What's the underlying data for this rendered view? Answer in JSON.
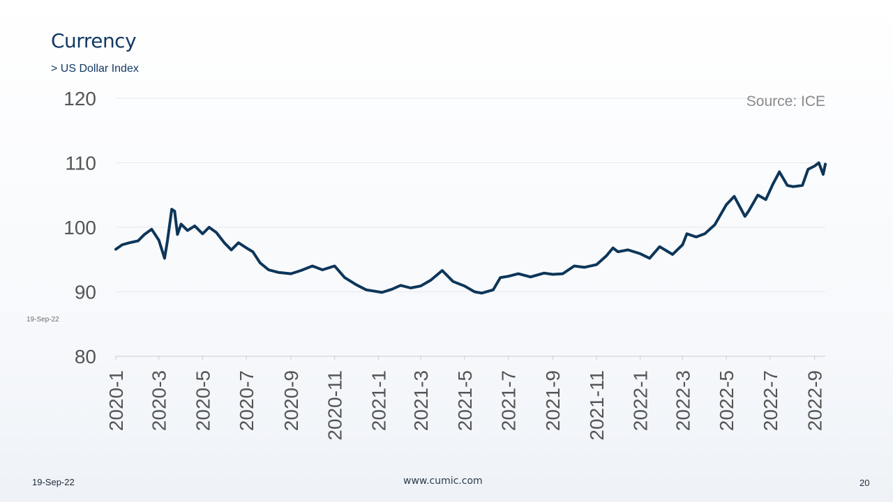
{
  "slide": {
    "title": "Currency",
    "subtitle": "> US Dollar Index",
    "side_date": "19-Sep-22",
    "footer_date": "19-Sep-22",
    "footer_url": "www.cumic.com",
    "page_number": "20"
  },
  "chart_data": {
    "type": "line",
    "title": "",
    "source_note": "Source:  ICE",
    "xlabel": "",
    "ylabel": "",
    "ylim": [
      80,
      120
    ],
    "yticks": [
      80,
      90,
      100,
      110,
      120
    ],
    "xlim": [
      "2020-01-01",
      "2022-09-16"
    ],
    "xticks": [
      "2020-1",
      "2020-3",
      "2020-5",
      "2020-7",
      "2020-9",
      "2020-11",
      "2021-1",
      "2021-3",
      "2021-5",
      "2021-7",
      "2021-9",
      "2021-11",
      "2022-1",
      "2022-3",
      "2022-5",
      "2022-7",
      "2022-9"
    ],
    "grid": true,
    "legend": "none",
    "line_color": "#0d3659",
    "series": [
      {
        "x": [
          "2020-01-01",
          "2020-01-10",
          "2020-01-20",
          "2020-02-01",
          "2020-02-10",
          "2020-02-20",
          "2020-03-01",
          "2020-03-09",
          "2020-03-13",
          "2020-03-19",
          "2020-03-23",
          "2020-03-27",
          "2020-04-01",
          "2020-04-10",
          "2020-04-20",
          "2020-05-01",
          "2020-05-10",
          "2020-05-20",
          "2020-06-01",
          "2020-06-10",
          "2020-06-20",
          "2020-07-01",
          "2020-07-10",
          "2020-07-20",
          "2020-08-01",
          "2020-08-15",
          "2020-09-01",
          "2020-09-15",
          "2020-10-01",
          "2020-10-15",
          "2020-11-01",
          "2020-11-15",
          "2020-12-01",
          "2020-12-15",
          "2021-01-06",
          "2021-01-20",
          "2021-02-01",
          "2021-02-15",
          "2021-03-01",
          "2021-03-15",
          "2021-03-31",
          "2021-04-15",
          "2021-05-01",
          "2021-05-15",
          "2021-05-25",
          "2021-06-10",
          "2021-06-20",
          "2021-07-01",
          "2021-07-15",
          "2021-08-01",
          "2021-08-20",
          "2021-09-01",
          "2021-09-15",
          "2021-10-01",
          "2021-10-15",
          "2021-11-01",
          "2021-11-15",
          "2021-11-24",
          "2021-12-01",
          "2021-12-15",
          "2022-01-01",
          "2022-01-14",
          "2022-01-28",
          "2022-02-15",
          "2022-03-01",
          "2022-03-07",
          "2022-03-20",
          "2022-04-01",
          "2022-04-15",
          "2022-05-01",
          "2022-05-12",
          "2022-05-27",
          "2022-06-01",
          "2022-06-14",
          "2022-06-25",
          "2022-07-05",
          "2022-07-14",
          "2022-07-25",
          "2022-08-02",
          "2022-08-15",
          "2022-08-23",
          "2022-09-01",
          "2022-09-07",
          "2022-09-13",
          "2022-09-16"
        ],
        "values": [
          96.6,
          97.3,
          97.6,
          97.9,
          98.9,
          99.7,
          98.0,
          95.2,
          97.9,
          102.8,
          102.5,
          98.9,
          100.5,
          99.5,
          100.2,
          99.0,
          100.0,
          99.2,
          97.5,
          96.5,
          97.6,
          96.8,
          96.2,
          94.5,
          93.4,
          93.0,
          92.8,
          93.3,
          94.0,
          93.4,
          94.0,
          92.2,
          91.1,
          90.3,
          89.9,
          90.4,
          91.0,
          90.6,
          90.9,
          91.8,
          93.3,
          91.6,
          90.9,
          90.0,
          89.8,
          90.3,
          92.2,
          92.4,
          92.8,
          92.3,
          92.9,
          92.7,
          92.8,
          94.0,
          93.8,
          94.2,
          95.6,
          96.8,
          96.2,
          96.5,
          95.9,
          95.2,
          97.0,
          95.8,
          97.3,
          99.0,
          98.5,
          99.0,
          100.4,
          103.5,
          104.8,
          101.7,
          102.5,
          105.0,
          104.3,
          106.7,
          108.6,
          106.5,
          106.3,
          106.5,
          109.0,
          109.5,
          110.0,
          108.2,
          109.8
        ]
      }
    ]
  }
}
